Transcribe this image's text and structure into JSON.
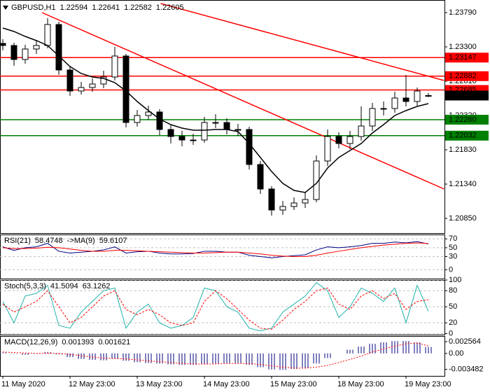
{
  "chart_data": [
    {
      "type": "candlestick",
      "title": "GBPUSD,H1",
      "categories": [
        "11 May 2020",
        null,
        null,
        null,
        null,
        null,
        "12 May 23:00",
        null,
        null,
        null,
        null,
        null,
        "13 May 23:00",
        null,
        null,
        null,
        null,
        null,
        "14 May 23:00",
        null,
        null,
        null,
        null,
        null,
        "15 May 23:00",
        null,
        null,
        null,
        null,
        null,
        "18 May 23:00",
        null,
        null,
        null,
        null,
        null,
        "19 May 23:00",
        null,
        null
      ],
      "open": [
        1.2335,
        1.2332,
        1.2312,
        1.2327,
        1.2332,
        1.2362,
        1.2297,
        1.2267,
        1.2272,
        1.2277,
        1.2287,
        1.2317,
        1.2222,
        1.2232,
        1.2237,
        1.2212,
        1.2202,
        1.2197,
        1.2197,
        1.2222,
        1.2222,
        1.2212,
        1.2212,
        1.2162,
        1.2127,
        1.2097,
        1.2102,
        1.2107,
        1.2112,
        1.2167,
        1.2202,
        1.2192,
        1.2202,
        1.2217,
        1.2242,
        1.2242,
        1.2257,
        1.2252,
        1.22594
      ],
      "high": [
        1.2341,
        1.2336,
        1.2333,
        1.234,
        1.2371,
        1.2366,
        1.2302,
        1.228,
        1.2285,
        1.2296,
        1.233,
        1.232,
        1.224,
        1.2246,
        1.2241,
        1.2218,
        1.221,
        1.2206,
        1.223,
        1.2234,
        1.2228,
        1.222,
        1.2216,
        1.2167,
        1.2131,
        1.211,
        1.2115,
        1.2122,
        1.2175,
        1.2212,
        1.2208,
        1.221,
        1.2245,
        1.225,
        1.2252,
        1.2266,
        1.229,
        1.2272,
        1.22641
      ],
      "low": [
        1.2325,
        1.2303,
        1.2306,
        1.232,
        1.2328,
        1.229,
        1.226,
        1.2262,
        1.2266,
        1.2271,
        1.2282,
        1.2215,
        1.2216,
        1.2226,
        1.2204,
        1.2192,
        1.2188,
        1.219,
        1.2193,
        1.2214,
        1.2205,
        1.2203,
        1.2155,
        1.212,
        1.2089,
        1.209,
        1.2097,
        1.21,
        1.2108,
        1.216,
        1.2185,
        1.2184,
        1.2196,
        1.221,
        1.2232,
        1.2236,
        1.2245,
        1.2246,
        1.22582
      ],
      "close": [
        1.2332,
        1.2312,
        1.2327,
        1.2332,
        1.2362,
        1.2297,
        1.2267,
        1.2272,
        1.2277,
        1.2287,
        1.2317,
        1.2222,
        1.2232,
        1.2237,
        1.2212,
        1.2202,
        1.2197,
        1.2197,
        1.2222,
        1.2222,
        1.2212,
        1.2212,
        1.2162,
        1.2127,
        1.2097,
        1.2102,
        1.2107,
        1.2112,
        1.2167,
        1.2202,
        1.2192,
        1.2202,
        1.2217,
        1.2242,
        1.2242,
        1.2257,
        1.2252,
        1.2267,
        1.22605
      ],
      "bull_color": "#ffffff",
      "bear_color": "#000000",
      "ma": {
        "color": "#000000",
        "values": [
          1.2357,
          1.2352,
          1.2345,
          1.2339,
          1.2332,
          1.2317,
          1.2302,
          1.2292,
          1.2287,
          1.2285,
          1.2279,
          1.2267,
          1.2252,
          1.2239,
          1.2227,
          1.2219,
          1.2214,
          1.2211,
          1.2211,
          1.2212,
          1.2212,
          1.2209,
          1.2192,
          1.2172,
          1.2152,
          1.2135,
          1.2125,
          1.2122,
          1.2135,
          1.2157,
          1.2172,
          1.2182,
          1.2192,
          1.2207,
          1.2219,
          1.2232,
          1.2239,
          1.2245,
          1.2249
        ]
      },
      "levels": [
        {
          "value": 1.23147,
          "color": "#ff0000"
        },
        {
          "value": 1.22882,
          "color": "#ff0000"
        },
        {
          "value": 1.22685,
          "color": "#ff0000"
        },
        {
          "value": 1.2226,
          "label": "1.22260",
          "color": "#008000"
        },
        {
          "value": 1.22032,
          "color": "#008000"
        }
      ],
      "trendlines": [
        {
          "x": [
            3.5,
            39.4
          ],
          "y": [
            1.2379,
            1.2127
          ],
          "color": "#ff0000"
        },
        {
          "x": [
            14.1,
            39.4
          ],
          "y": [
            1.2392,
            1.2282
          ],
          "color": "#ff0000"
        }
      ],
      "ylim": [
        1.2064,
        1.2397
      ],
      "yticks": [
        {
          "value": 1.2085,
          "label": "1.20850"
        },
        {
          "value": 1.2134,
          "label": "1.21340"
        },
        {
          "value": 1.2183,
          "label": "1.21830"
        },
        {
          "value": 1.2232,
          "label": "1.22320"
        },
        {
          "value": 1.2281,
          "label": "1.22810"
        },
        {
          "value": 1.233,
          "label": "1.23300"
        },
        {
          "value": 1.2379,
          "label": "1.23790"
        }
      ]
    },
    {
      "type": "line",
      "grid": true,
      "series": [
        {
          "name": "RSI(21)",
          "color": "#000080",
          "values": [
            52,
            44,
            50,
            52,
            60,
            42,
            38,
            40,
            42,
            45,
            52,
            38,
            41,
            42,
            38,
            36,
            36,
            37,
            42,
            42,
            40,
            40,
            33,
            30,
            27,
            30,
            32,
            34,
            45,
            52,
            50,
            52,
            55,
            60,
            60,
            63,
            61,
            64,
            58.4748
          ]
        },
        {
          "name": "->MA(9)",
          "color": "#ff0000",
          "values": [
            50,
            48,
            48,
            49,
            51,
            50,
            47,
            44,
            42,
            42,
            44,
            44,
            43,
            42,
            41,
            40,
            39,
            38,
            38,
            39,
            40,
            40,
            38,
            36,
            33,
            31,
            30,
            30,
            33,
            38,
            42,
            46,
            50,
            53,
            56,
            58,
            60,
            61,
            59.6107
          ]
        }
      ],
      "ylim": [
        -20,
        80
      ],
      "yticks": [
        0,
        30,
        50,
        70
      ]
    },
    {
      "type": "line",
      "title": "Stoch(5,3,3)",
      "grid": true,
      "series": [
        {
          "color": "#20b2aa",
          "values": [
            60,
            20,
            70,
            75,
            90,
            15,
            10,
            40,
            60,
            80,
            85,
            10,
            40,
            55,
            20,
            10,
            15,
            30,
            85,
            80,
            50,
            40,
            10,
            5,
            10,
            40,
            55,
            70,
            95,
            80,
            30,
            50,
            85,
            75,
            60,
            85,
            20,
            90,
            41.5094
          ]
        },
        {
          "color": "#ff0000",
          "dashed": true,
          "values": [
            55,
            40,
            50,
            60,
            80,
            50,
            20,
            30,
            50,
            70,
            80,
            45,
            35,
            45,
            35,
            20,
            15,
            20,
            60,
            80,
            65,
            45,
            25,
            10,
            8,
            25,
            45,
            60,
            80,
            85,
            55,
            45,
            70,
            80,
            65,
            75,
            45,
            60,
            63.1262
          ]
        }
      ],
      "ylim": [
        -2,
        100
      ],
      "yticks": [
        0,
        20,
        50,
        80,
        100
      ]
    },
    {
      "type": "combo",
      "title": "MACD(12,26,9)",
      "series": [
        {
          "color": "#000080",
          "kind": "bar",
          "values": [
            0.0002,
            -0.0001,
            -0.0003,
            -0.0001,
            0.0003,
            -0.0002,
            -0.0008,
            -0.0012,
            -0.0014,
            -0.0015,
            -0.0012,
            -0.0016,
            -0.0019,
            -0.0021,
            -0.0022,
            -0.0024,
            -0.0025,
            -0.0025,
            -0.0024,
            -0.0022,
            -0.0021,
            -0.0021,
            -0.0025,
            -0.003,
            -0.0035,
            -0.0036,
            -0.0034,
            -0.0031,
            -0.0022,
            -0.001,
            0,
            0.0008,
            0.0015,
            0.0021,
            0.0024,
            0.0027,
            0.0027,
            0.0024,
            0.001393
          ]
        },
        {
          "color": "#ff0000",
          "kind": "line",
          "dashed": true,
          "values": [
            0.0003,
            0.0002,
            0.0001,
            0,
            0,
            0,
            -0.0002,
            -0.0005,
            -0.0008,
            -0.001,
            -0.0011,
            -0.0012,
            -0.0014,
            -0.0016,
            -0.0018,
            -0.002,
            -0.0022,
            -0.0023,
            -0.0023,
            -0.0023,
            -0.0022,
            -0.0022,
            -0.0022,
            -0.0024,
            -0.0027,
            -0.003,
            -0.0032,
            -0.0032,
            -0.003,
            -0.0026,
            -0.002,
            -0.0013,
            -0.0006,
            0.0003,
            0.001,
            0.0016,
            0.0021,
            0.0023,
            0.001621
          ]
        }
      ],
      "ylim": [
        -0.0049,
        0.0038
      ],
      "yticks": [
        -0.003482,
        {
          "value": 0,
          "label": "0.00"
        },
        0.002564
      ]
    }
  ]
}
